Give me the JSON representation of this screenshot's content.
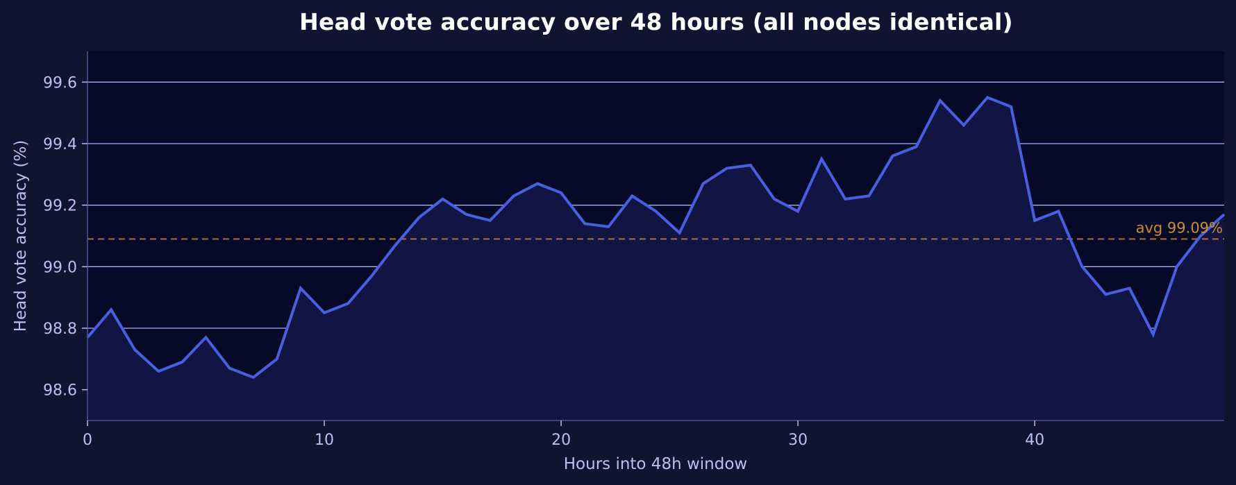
{
  "title": "Head vote accuracy over 48 hours (all nodes identical)",
  "axes": {
    "xlabel": "Hours into 48h window",
    "ylabel": "Head vote accuracy (%)",
    "x_ticks": [
      "0",
      "10",
      "20",
      "30",
      "40"
    ],
    "y_ticks": [
      "98.6",
      "98.8",
      "99.0",
      "99.2",
      "99.4",
      "99.6"
    ]
  },
  "avg_label": "avg 99.09%",
  "colors": {
    "figure_bg": "#111431",
    "axes_bg": "#060a28",
    "area_fill": "#101544",
    "line": "#4a5ee0",
    "grid": "#aab2f0",
    "text": "#b8c0f0",
    "avg_line": "#c47d2a",
    "avg_text": "#cf8a2c"
  },
  "chart_data": {
    "type": "area",
    "title": "Head vote accuracy over 48 hours (all nodes identical)",
    "xlabel": "Hours into 48h window",
    "ylabel": "Head vote accuracy (%)",
    "xlim": [
      0,
      48
    ],
    "ylim": [
      98.5,
      99.7
    ],
    "x_ticks": [
      0,
      10,
      20,
      30,
      40
    ],
    "y_ticks": [
      98.6,
      98.8,
      99.0,
      99.2,
      99.4,
      99.6
    ],
    "grid": "horizontal",
    "x": [
      0,
      1,
      2,
      3,
      4,
      5,
      6,
      7,
      8,
      9,
      10,
      11,
      12,
      13,
      14,
      15,
      16,
      17,
      18,
      19,
      20,
      21,
      22,
      23,
      24,
      25,
      26,
      27,
      28,
      29,
      30,
      31,
      32,
      33,
      34,
      35,
      36,
      37,
      38,
      39,
      40,
      41,
      42,
      43,
      44,
      45,
      46,
      47,
      48
    ],
    "series": [
      {
        "name": "Head vote accuracy",
        "values": [
          98.77,
          98.86,
          98.73,
          98.66,
          98.69,
          98.77,
          98.67,
          98.64,
          98.7,
          98.93,
          98.85,
          98.88,
          98.97,
          99.07,
          99.16,
          99.22,
          99.17,
          99.15,
          99.23,
          99.27,
          99.24,
          99.14,
          99.13,
          99.23,
          99.18,
          99.11,
          99.27,
          99.32,
          99.33,
          99.22,
          99.18,
          99.35,
          99.22,
          99.23,
          99.36,
          99.39,
          99.54,
          99.46,
          99.55,
          99.52,
          99.15,
          99.18,
          99.0,
          98.91,
          98.93,
          98.78,
          99.0,
          99.1,
          99.17
        ]
      }
    ],
    "annotations": [
      {
        "type": "hline",
        "y": 99.09,
        "style": "dashed",
        "label": "avg 99.09%"
      }
    ]
  }
}
